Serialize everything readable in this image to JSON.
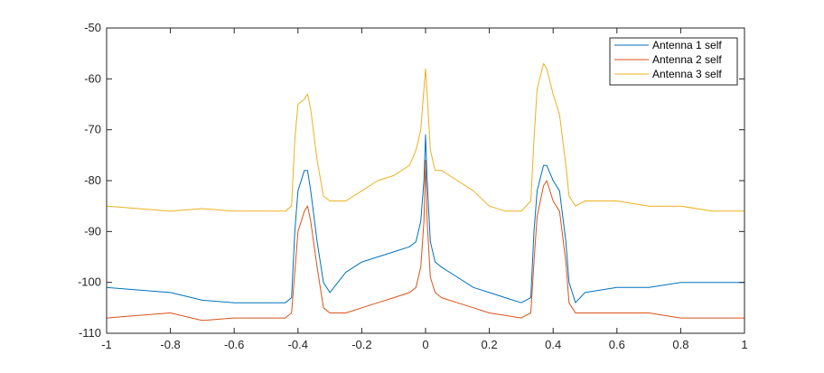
{
  "chart_data": {
    "type": "line",
    "title": "",
    "xlabel": "",
    "ylabel": "",
    "xlim": [
      -1,
      1
    ],
    "ylim": [
      -110,
      -50
    ],
    "x_ticks": [
      -1,
      -0.8,
      -0.6,
      -0.4,
      -0.2,
      0,
      0.2,
      0.4,
      0.6,
      0.8,
      1
    ],
    "x_tick_labels": [
      "-1",
      "-0.8",
      "-0.6",
      "-0.4",
      "-0.2",
      "0",
      "0.2",
      "0.4",
      "0.6",
      "0.8",
      "1"
    ],
    "y_ticks": [
      -110,
      -100,
      -90,
      -80,
      -70,
      -60,
      -50
    ],
    "y_tick_labels": [
      "-110",
      "-100",
      "-90",
      "-80",
      "-70",
      "-60",
      "-50"
    ],
    "grid": false,
    "legend_position": "top-right",
    "x": [
      -1.0,
      -0.9,
      -0.8,
      -0.7,
      -0.6,
      -0.5,
      -0.44,
      -0.42,
      -0.41,
      -0.4,
      -0.38,
      -0.37,
      -0.36,
      -0.34,
      -0.32,
      -0.3,
      -0.25,
      -0.2,
      -0.15,
      -0.1,
      -0.05,
      -0.03,
      -0.015,
      -0.005,
      0.0,
      0.005,
      0.015,
      0.03,
      0.05,
      0.1,
      0.15,
      0.2,
      0.25,
      0.3,
      0.33,
      0.34,
      0.35,
      0.37,
      0.38,
      0.4,
      0.42,
      0.44,
      0.45,
      0.47,
      0.5,
      0.6,
      0.7,
      0.8,
      0.9,
      1.0
    ],
    "series": [
      {
        "name": "Antenna 1 self",
        "color": "#0072BD",
        "values": [
          -101,
          -101.5,
          -102,
          -103.5,
          -104,
          -104,
          -104,
          -103,
          -90,
          -82,
          -78,
          -78,
          -82,
          -92,
          -100,
          -102,
          -98,
          -96,
          -95,
          -94,
          -93,
          -92,
          -88,
          -80,
          -71,
          -80,
          -92,
          -96,
          -97,
          -99,
          -101,
          -102,
          -103,
          -104,
          -103,
          -90,
          -82,
          -77,
          -77,
          -80,
          -82,
          -92,
          -100,
          -104,
          -102,
          -101,
          -101,
          -100,
          -100,
          -100
        ]
      },
      {
        "name": "Antenna 2 self",
        "color": "#D95319",
        "values": [
          -107,
          -106.5,
          -106,
          -107.5,
          -107,
          -107,
          -107,
          -106,
          -98,
          -90,
          -86,
          -85,
          -88,
          -97,
          -105,
          -106,
          -106,
          -105,
          -104,
          -103,
          -102,
          -101,
          -97,
          -88,
          -76,
          -88,
          -99,
          -102,
          -103,
          -104,
          -105,
          -106,
          -106.5,
          -107,
          -106,
          -96,
          -87,
          -81,
          -80,
          -84,
          -86,
          -96,
          -104,
          -106,
          -106,
          -106,
          -106,
          -107,
          -107,
          -107
        ]
      },
      {
        "name": "Antenna 3 self",
        "color": "#EDB120",
        "values": [
          -85,
          -85.5,
          -86,
          -85.5,
          -86,
          -86,
          -86,
          -85,
          -72,
          -65,
          -64,
          -63,
          -66,
          -76,
          -83,
          -84,
          -84,
          -82,
          -80,
          -79,
          -77,
          -74,
          -70,
          -62,
          -58,
          -63,
          -74,
          -78,
          -78,
          -80,
          -82,
          -85,
          -86,
          -86,
          -84,
          -72,
          -62,
          -57,
          -58,
          -63,
          -67,
          -77,
          -83,
          -85,
          -84,
          -84,
          -85,
          -85,
          -86,
          -86
        ]
      }
    ]
  }
}
